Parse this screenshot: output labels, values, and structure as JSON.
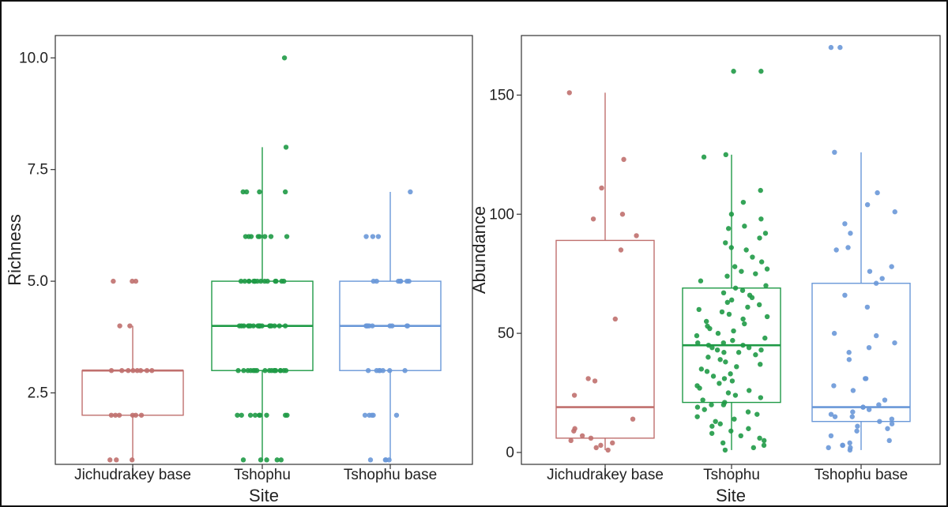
{
  "chart_data": [
    {
      "type": "box",
      "xlabel": "Site",
      "ylabel": "Richness",
      "categories": [
        "Jichudrakey base",
        "Tshophu",
        "Tshophu base"
      ],
      "ylim": [
        0.9,
        10.5
      ],
      "yticks": [
        2.5,
        5.0,
        7.5,
        10.0
      ],
      "ytick_labels": [
        "2.5",
        "5.0",
        "7.5",
        "10.0"
      ],
      "grid": false,
      "colors": [
        "#c0706e",
        "#1f9a46",
        "#6a98d8"
      ],
      "boxes": [
        {
          "q1": 2,
          "median": 3,
          "q3": 3,
          "whisker_low": 1,
          "whisker_high": 4
        },
        {
          "q1": 3,
          "median": 4,
          "q3": 5,
          "whisker_low": 1,
          "whisker_high": 8
        },
        {
          "q1": 3,
          "median": 4,
          "q3": 5,
          "whisker_low": 1,
          "whisker_high": 7
        }
      ],
      "points": [
        [
          5,
          5,
          5,
          4,
          4,
          3,
          3,
          3,
          3,
          3,
          3,
          3,
          3,
          2,
          2,
          2,
          2,
          2,
          2,
          1,
          1,
          1
        ],
        [
          10,
          8,
          7,
          7,
          7,
          7,
          6,
          6,
          6,
          6,
          6,
          6,
          6,
          6,
          5,
          5,
          5,
          5,
          5,
          5,
          5,
          5,
          5,
          5,
          5,
          5,
          5,
          5,
          5,
          4,
          4,
          4,
          4,
          4,
          4,
          4,
          4,
          4,
          4,
          4,
          4,
          4,
          4,
          4,
          4,
          4,
          4,
          4,
          4,
          3,
          3,
          3,
          3,
          3,
          3,
          3,
          3,
          3,
          3,
          3,
          3,
          3,
          3,
          3,
          3,
          3,
          2,
          2,
          2,
          2,
          2,
          2,
          2,
          2,
          2,
          1,
          1,
          1,
          1,
          1
        ],
        [
          7,
          6,
          6,
          6,
          5,
          5,
          5,
          5,
          5,
          5,
          5,
          4,
          4,
          4,
          4,
          4,
          4,
          4,
          4,
          4,
          3,
          3,
          3,
          3,
          3,
          3,
          3,
          2,
          2,
          2,
          2,
          2,
          1,
          1,
          1,
          1
        ]
      ]
    },
    {
      "type": "box",
      "xlabel": "Site",
      "ylabel": "Abundance",
      "categories": [
        "Jichudrakey base",
        "Tshophu",
        "Tshophu base"
      ],
      "ylim": [
        -5,
        175
      ],
      "yticks": [
        0,
        50,
        100,
        150
      ],
      "ytick_labels": [
        "0",
        "50",
        "100",
        "150"
      ],
      "grid": false,
      "colors": [
        "#c0706e",
        "#1f9a46",
        "#6a98d8"
      ],
      "boxes": [
        {
          "q1": 6,
          "median": 19,
          "q3": 89,
          "whisker_low": 1,
          "whisker_high": 151
        },
        {
          "q1": 21,
          "median": 45,
          "q3": 69,
          "whisker_low": 1,
          "whisker_high": 125
        },
        {
          "q1": 13,
          "median": 19,
          "q3": 71,
          "whisker_low": 1,
          "whisker_high": 126
        }
      ],
      "points": [
        [
          151,
          123,
          111,
          100,
          98,
          91,
          85,
          56,
          31,
          30,
          24,
          14,
          10,
          9,
          7,
          6,
          5,
          4,
          3,
          2,
          1
        ],
        [
          160,
          160,
          125,
          124,
          110,
          105,
          100,
          98,
          95,
          94,
          92,
          90,
          88,
          86,
          85,
          82,
          80,
          78,
          77,
          76,
          75,
          74,
          72,
          70,
          69,
          68,
          67,
          66,
          65,
          64,
          63,
          62,
          61,
          60,
          59,
          58,
          57,
          56,
          55,
          54,
          53,
          52,
          51,
          50,
          49,
          48,
          47,
          46,
          46,
          45,
          45,
          44,
          44,
          43,
          43,
          42,
          42,
          41,
          40,
          39,
          38,
          37,
          36,
          35,
          34,
          33,
          32,
          31,
          30,
          29,
          28,
          27,
          26,
          25,
          24,
          23,
          22,
          21,
          20,
          20,
          19,
          18,
          17,
          16,
          15,
          14,
          13,
          12,
          11,
          10,
          9,
          8,
          7,
          6,
          5,
          4,
          3,
          2,
          1
        ],
        [
          170,
          170,
          126,
          109,
          104,
          101,
          96,
          92,
          86,
          85,
          78,
          76,
          73,
          71,
          66,
          61,
          50,
          49,
          46,
          44,
          42,
          39,
          31,
          31,
          28,
          26,
          22,
          20,
          19,
          19,
          18,
          17,
          16,
          15,
          15,
          14,
          13,
          12,
          11,
          10,
          9,
          7,
          5,
          4,
          3,
          3,
          2,
          2,
          1
        ]
      ]
    }
  ]
}
